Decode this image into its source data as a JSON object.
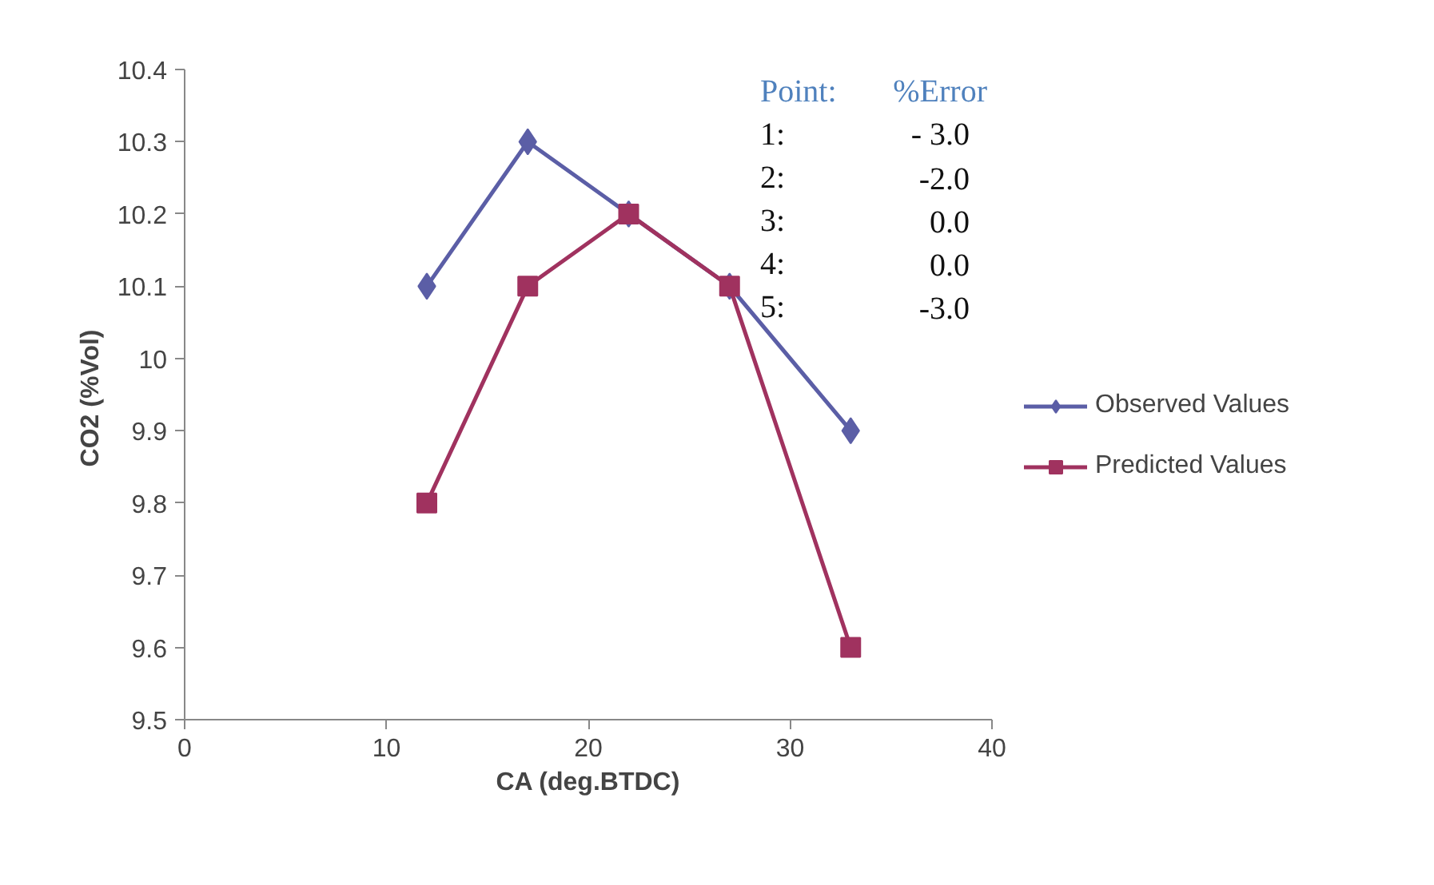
{
  "chart_data": {
    "type": "line",
    "xlabel": "CA (deg.BTDC)",
    "ylabel": "CO2  (%Vol)",
    "x": [
      12,
      17,
      22,
      27,
      33
    ],
    "series": [
      {
        "name": "Observed Values",
        "color": "#5b5ea6",
        "marker": "diamond",
        "values": [
          10.1,
          10.3,
          10.2,
          10.1,
          9.9
        ]
      },
      {
        "name": "Predicted Values",
        "color": "#a0325f",
        "marker": "square",
        "values": [
          9.8,
          10.1,
          10.2,
          10.1,
          9.6
        ]
      }
    ],
    "xlim": [
      0,
      40
    ],
    "xticks": [
      0,
      10,
      20,
      30,
      40
    ],
    "ylim": [
      9.5,
      10.4
    ],
    "yticks": [
      9.5,
      9.6,
      9.7,
      9.8,
      9.9,
      10,
      10.1,
      10.2,
      10.3,
      10.4
    ],
    "grid": false,
    "legend": "right",
    "line_style": "solid",
    "annotations": [
      "Point: %Error",
      "1: - 3.0",
      "2: -2.0",
      "3: 0.0",
      "4: 0.0",
      "5: -3.0"
    ]
  }
}
